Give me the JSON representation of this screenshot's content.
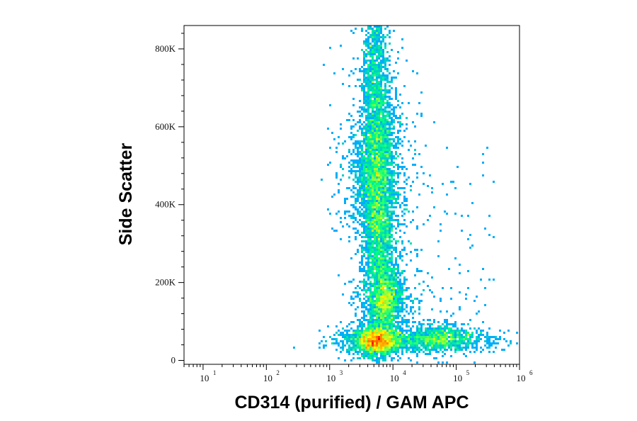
{
  "chart_data": {
    "type": "scatter",
    "subtype": "flow-cytometry-density-plot",
    "xlabel": "CD314 (purified) / GAM APC",
    "ylabel": "Side Scatter",
    "x_scale": "log",
    "xlim": [
      5,
      1000000
    ],
    "ylim": [
      -10000,
      860000
    ],
    "x_ticks": [
      {
        "base": "10",
        "exp": "1",
        "value": 10
      },
      {
        "base": "10",
        "exp": "2",
        "value": 100
      },
      {
        "base": "10",
        "exp": "3",
        "value": 1000
      },
      {
        "base": "10",
        "exp": "4",
        "value": 10000
      },
      {
        "base": "10",
        "exp": "5",
        "value": 100000
      },
      {
        "base": "10",
        "exp": "6",
        "value": 1000000
      }
    ],
    "y_ticks": [
      {
        "label": "0",
        "value": 0
      },
      {
        "label": "200K",
        "value": 200000
      },
      {
        "label": "400K",
        "value": 400000
      },
      {
        "label": "600K",
        "value": 600000
      },
      {
        "label": "800K",
        "value": 800000
      }
    ],
    "color_scale": [
      "#0000ff",
      "#00aaff",
      "#00ff80",
      "#ffff00",
      "#ff8000",
      "#ff0000"
    ],
    "populations": [
      {
        "x_center": 5500,
        "y_center": 50000,
        "density": "highest"
      },
      {
        "x_center": 5500,
        "y_center": 480000,
        "density": "high"
      },
      {
        "x_center": 7800,
        "y_center": 160000,
        "density": "medium"
      },
      {
        "x_center": 55000,
        "y_center": 55000,
        "density": "medium"
      }
    ],
    "grid": false,
    "legend": "none"
  }
}
